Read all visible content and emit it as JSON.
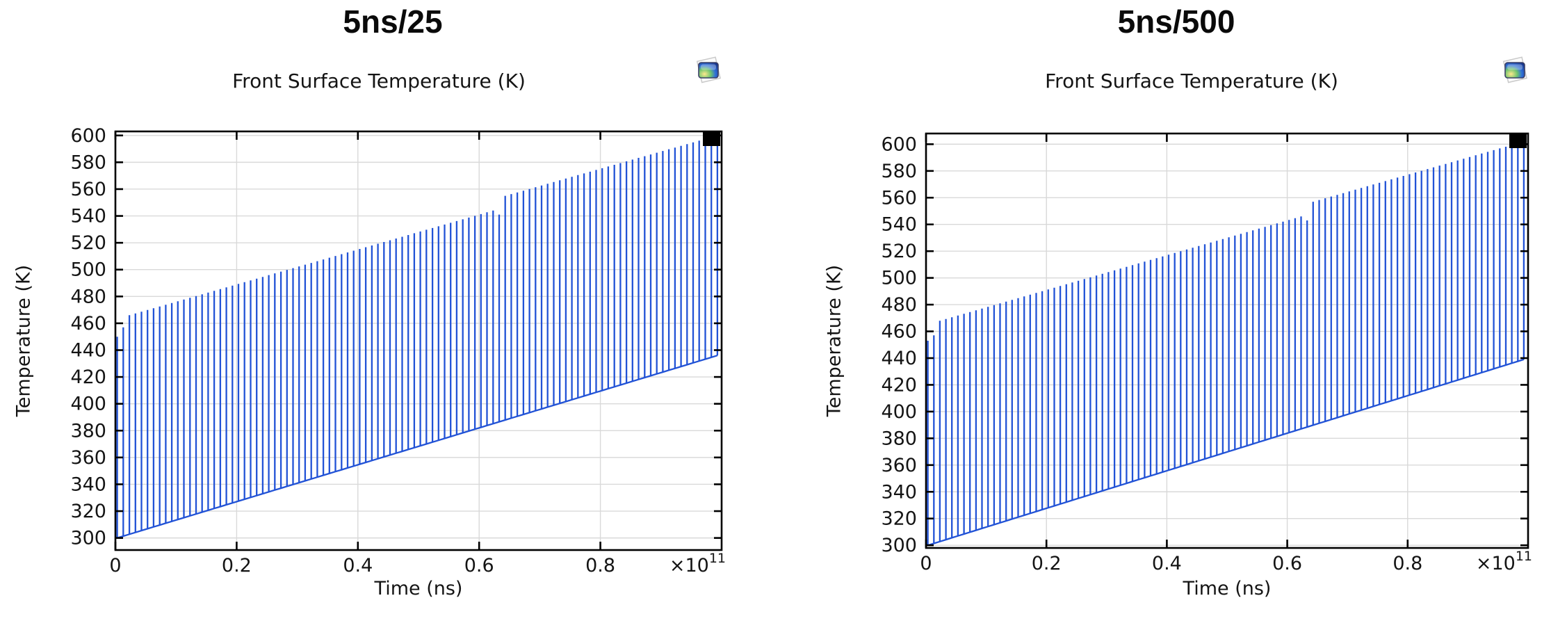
{
  "figure": {
    "background": "#ffffff"
  },
  "chart_data": [
    {
      "type": "line",
      "panel_title": "5ns/25",
      "title": "Front Surface Temperature (K)",
      "xlabel": "Time (ns)",
      "ylabel": "Temperature (K)",
      "x_scale_mantissa": "×10",
      "x_scale_exponent": "11",
      "xlim": [
        0,
        100000000000.0
      ],
      "ylim": [
        291,
        603
      ],
      "x_ticks": [
        0,
        20000000000.0,
        40000000000.0,
        60000000000.0,
        80000000000.0
      ],
      "x_tick_labels": [
        "0",
        "0.2",
        "0.4",
        "0.6",
        "0.8"
      ],
      "y_ticks": [
        300,
        320,
        340,
        360,
        380,
        400,
        420,
        440,
        460,
        480,
        500,
        520,
        540,
        560,
        580,
        600
      ],
      "grid": true,
      "legend": "none",
      "line_color": "#2152d6",
      "grid_color": "#d9d9d9",
      "frame_color": "#000000",
      "pulse_train": {
        "n_pulses": 100,
        "period_ns": 1000000000.0,
        "first_pulse_offset_ns": 300000000.0,
        "baseline_start_K": 300,
        "baseline_end_K": 436,
        "peak_envelope_K": [
          {
            "pulse": 1,
            "T": 450
          },
          {
            "pulse": 2,
            "T": 457
          },
          {
            "pulse": 3,
            "T": 466
          },
          {
            "pulse": 63,
            "T": 544
          },
          {
            "pulse": 64,
            "T": 541
          },
          {
            "pulse": 65,
            "T": 555
          },
          {
            "pulse": 100,
            "T": 600
          }
        ]
      }
    },
    {
      "type": "line",
      "panel_title": "5ns/500",
      "title": "Front Surface Temperature (K)",
      "xlabel": "Time (ns)",
      "ylabel": "Temperature (K)",
      "x_scale_mantissa": "×10",
      "x_scale_exponent": "11",
      "xlim": [
        0,
        100000000000.0
      ],
      "ylim": [
        298,
        608
      ],
      "x_ticks": [
        0,
        20000000000.0,
        40000000000.0,
        60000000000.0,
        80000000000.0
      ],
      "x_tick_labels": [
        "0",
        "0.2",
        "0.4",
        "0.6",
        "0.8"
      ],
      "y_ticks": [
        300,
        320,
        340,
        360,
        380,
        400,
        420,
        440,
        460,
        480,
        500,
        520,
        540,
        560,
        580,
        600
      ],
      "grid": true,
      "legend": "none",
      "line_color": "#2152d6",
      "grid_color": "#d9d9d9",
      "frame_color": "#000000",
      "pulse_train": {
        "n_pulses": 100,
        "period_ns": 1000000000.0,
        "first_pulse_offset_ns": 300000000.0,
        "baseline_start_K": 300,
        "baseline_end_K": 439,
        "peak_envelope_K": [
          {
            "pulse": 1,
            "T": 453
          },
          {
            "pulse": 2,
            "T": 457
          },
          {
            "pulse": 3,
            "T": 468
          },
          {
            "pulse": 63,
            "T": 546
          },
          {
            "pulse": 64,
            "T": 543
          },
          {
            "pulse": 65,
            "T": 557
          },
          {
            "pulse": 100,
            "T": 602
          }
        ]
      }
    }
  ]
}
